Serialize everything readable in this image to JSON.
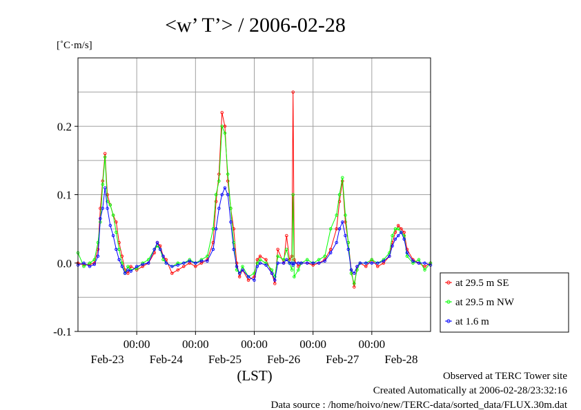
{
  "chart_data": {
    "type": "line",
    "title": "<w’ T’> / 2006-02-28",
    "ylabel": "[˚C·m/s]",
    "xlabel": "(LST)",
    "ylim": [
      -0.1,
      0.3
    ],
    "xlim": [
      0,
      6
    ],
    "y_ticks": [
      {
        "value": -0.1,
        "label": "-0.1"
      },
      {
        "value": 0.0,
        "label": "0.0"
      },
      {
        "value": 0.1,
        "label": "0.1"
      },
      {
        "value": 0.2,
        "label": "0.2"
      }
    ],
    "y_minor": [
      -0.05,
      0.05,
      0.15,
      0.25
    ],
    "x_time_ticks": [
      {
        "value": 1,
        "label": "00:00"
      },
      {
        "value": 2,
        "label": "00:00"
      },
      {
        "value": 3,
        "label": "00:00"
      },
      {
        "value": 4,
        "label": "00:00"
      },
      {
        "value": 5,
        "label": "00:00"
      }
    ],
    "x_date_labels": [
      {
        "value": 0.5,
        "label": "Feb-23"
      },
      {
        "value": 1.5,
        "label": "Feb-24"
      },
      {
        "value": 2.5,
        "label": "Feb-25"
      },
      {
        "value": 3.5,
        "label": "Feb-26"
      },
      {
        "value": 4.5,
        "label": "Feb-27"
      },
      {
        "value": 5.5,
        "label": "Feb-28"
      }
    ],
    "grid": true,
    "legend_position": "right-bottom",
    "series": [
      {
        "name": "at 29.5 m SE",
        "color": "#ff0000",
        "points": [
          [
            0.0,
            0.0
          ],
          [
            0.1,
            -0.003
          ],
          [
            0.2,
            -0.002
          ],
          [
            0.28,
            0.0
          ],
          [
            0.34,
            0.02
          ],
          [
            0.38,
            0.08
          ],
          [
            0.42,
            0.12
          ],
          [
            0.46,
            0.16
          ],
          [
            0.5,
            0.1
          ],
          [
            0.55,
            0.085
          ],
          [
            0.6,
            0.07
          ],
          [
            0.65,
            0.06
          ],
          [
            0.7,
            0.03
          ],
          [
            0.75,
            0.01
          ],
          [
            0.8,
            -0.01
          ],
          [
            0.85,
            -0.015
          ],
          [
            0.9,
            -0.005
          ],
          [
            1.0,
            -0.01
          ],
          [
            1.1,
            -0.005
          ],
          [
            1.2,
            0.0
          ],
          [
            1.3,
            0.015
          ],
          [
            1.35,
            0.03
          ],
          [
            1.4,
            0.025
          ],
          [
            1.45,
            0.01
          ],
          [
            1.5,
            0.005
          ],
          [
            1.6,
            -0.015
          ],
          [
            1.7,
            -0.01
          ],
          [
            1.8,
            -0.005
          ],
          [
            1.9,
            0.0
          ],
          [
            2.0,
            -0.005
          ],
          [
            2.1,
            0.0
          ],
          [
            2.2,
            0.005
          ],
          [
            2.3,
            0.03
          ],
          [
            2.35,
            0.09
          ],
          [
            2.4,
            0.13
          ],
          [
            2.45,
            0.22
          ],
          [
            2.5,
            0.2
          ],
          [
            2.55,
            0.12
          ],
          [
            2.6,
            0.08
          ],
          [
            2.65,
            0.05
          ],
          [
            2.7,
            0.0
          ],
          [
            2.75,
            -0.02
          ],
          [
            2.8,
            -0.01
          ],
          [
            2.9,
            -0.025
          ],
          [
            3.0,
            -0.02
          ],
          [
            3.05,
            0.005
          ],
          [
            3.1,
            0.01
          ],
          [
            3.2,
            0.005
          ],
          [
            3.3,
            -0.015
          ],
          [
            3.35,
            -0.03
          ],
          [
            3.4,
            0.02
          ],
          [
            3.5,
            0.0
          ],
          [
            3.55,
            0.04
          ],
          [
            3.6,
            0.005
          ],
          [
            3.64,
            0.01
          ],
          [
            3.66,
            0.25
          ],
          [
            3.68,
            0.005
          ],
          [
            3.75,
            -0.005
          ],
          [
            3.8,
            0.0
          ],
          [
            3.9,
            0.0
          ],
          [
            4.0,
            -0.003
          ],
          [
            4.1,
            0.0
          ],
          [
            4.2,
            0.005
          ],
          [
            4.3,
            0.02
          ],
          [
            4.4,
            0.05
          ],
          [
            4.45,
            0.09
          ],
          [
            4.5,
            0.12
          ],
          [
            4.55,
            0.06
          ],
          [
            4.6,
            0.03
          ],
          [
            4.65,
            -0.01
          ],
          [
            4.7,
            -0.035
          ],
          [
            4.75,
            -0.005
          ],
          [
            4.8,
            0.0
          ],
          [
            4.9,
            -0.005
          ],
          [
            5.0,
            0.005
          ],
          [
            5.1,
            -0.005
          ],
          [
            5.2,
            0.0
          ],
          [
            5.3,
            0.01
          ],
          [
            5.35,
            0.03
          ],
          [
            5.4,
            0.045
          ],
          [
            5.45,
            0.055
          ],
          [
            5.5,
            0.05
          ],
          [
            5.55,
            0.045
          ],
          [
            5.6,
            0.02
          ],
          [
            5.7,
            0.005
          ],
          [
            5.8,
            0.0
          ],
          [
            5.9,
            -0.005
          ],
          [
            6.0,
            0.0
          ]
        ]
      },
      {
        "name": "at 29.5 m NW",
        "color": "#00ff00",
        "points": [
          [
            0.0,
            0.015
          ],
          [
            0.1,
            -0.005
          ],
          [
            0.2,
            0.0
          ],
          [
            0.28,
            0.005
          ],
          [
            0.34,
            0.03
          ],
          [
            0.38,
            0.06
          ],
          [
            0.42,
            0.115
          ],
          [
            0.46,
            0.155
          ],
          [
            0.5,
            0.09
          ],
          [
            0.55,
            0.085
          ],
          [
            0.6,
            0.07
          ],
          [
            0.65,
            0.045
          ],
          [
            0.7,
            0.02
          ],
          [
            0.75,
            0.0
          ],
          [
            0.8,
            -0.015
          ],
          [
            0.85,
            -0.005
          ],
          [
            0.9,
            -0.01
          ],
          [
            1.0,
            -0.008
          ],
          [
            1.1,
            0.0
          ],
          [
            1.2,
            0.005
          ],
          [
            1.3,
            0.02
          ],
          [
            1.35,
            0.025
          ],
          [
            1.4,
            0.02
          ],
          [
            1.45,
            0.005
          ],
          [
            1.5,
            0.0
          ],
          [
            1.6,
            -0.005
          ],
          [
            1.7,
            0.0
          ],
          [
            1.8,
            0.0
          ],
          [
            1.9,
            0.005
          ],
          [
            2.0,
            0.0
          ],
          [
            2.1,
            0.005
          ],
          [
            2.2,
            0.01
          ],
          [
            2.3,
            0.05
          ],
          [
            2.35,
            0.1
          ],
          [
            2.4,
            0.12
          ],
          [
            2.45,
            0.2
          ],
          [
            2.5,
            0.19
          ],
          [
            2.55,
            0.13
          ],
          [
            2.6,
            0.08
          ],
          [
            2.65,
            0.03
          ],
          [
            2.7,
            -0.01
          ],
          [
            2.75,
            -0.015
          ],
          [
            2.8,
            -0.005
          ],
          [
            2.9,
            -0.02
          ],
          [
            3.0,
            -0.015
          ],
          [
            3.05,
            0.0
          ],
          [
            3.1,
            0.005
          ],
          [
            3.2,
            0.0
          ],
          [
            3.3,
            -0.01
          ],
          [
            3.35,
            -0.02
          ],
          [
            3.4,
            0.01
          ],
          [
            3.5,
            0.005
          ],
          [
            3.55,
            0.02
          ],
          [
            3.6,
            0.0
          ],
          [
            3.64,
            -0.01
          ],
          [
            3.66,
            0.1
          ],
          [
            3.68,
            -0.02
          ],
          [
            3.75,
            -0.01
          ],
          [
            3.8,
            0.0
          ],
          [
            3.9,
            0.005
          ],
          [
            4.0,
            0.0
          ],
          [
            4.1,
            0.005
          ],
          [
            4.2,
            0.01
          ],
          [
            4.3,
            0.05
          ],
          [
            4.4,
            0.07
          ],
          [
            4.45,
            0.1
          ],
          [
            4.5,
            0.125
          ],
          [
            4.55,
            0.07
          ],
          [
            4.6,
            0.03
          ],
          [
            4.65,
            -0.015
          ],
          [
            4.7,
            -0.03
          ],
          [
            4.75,
            -0.01
          ],
          [
            4.8,
            0.0
          ],
          [
            4.9,
            0.0
          ],
          [
            5.0,
            0.005
          ],
          [
            5.1,
            0.0
          ],
          [
            5.2,
            0.005
          ],
          [
            5.3,
            0.015
          ],
          [
            5.35,
            0.04
          ],
          [
            5.4,
            0.05
          ],
          [
            5.45,
            0.05
          ],
          [
            5.5,
            0.045
          ],
          [
            5.55,
            0.04
          ],
          [
            5.6,
            0.01
          ],
          [
            5.7,
            0.0
          ],
          [
            5.8,
            0.005
          ],
          [
            5.9,
            -0.01
          ],
          [
            6.0,
            0.0
          ]
        ]
      },
      {
        "name": "at 1.6 m",
        "color": "#0000ff",
        "points": [
          [
            0.0,
            -0.003
          ],
          [
            0.1,
            0.0
          ],
          [
            0.2,
            -0.005
          ],
          [
            0.28,
            -0.002
          ],
          [
            0.34,
            0.01
          ],
          [
            0.38,
            0.065
          ],
          [
            0.42,
            0.08
          ],
          [
            0.46,
            0.11
          ],
          [
            0.5,
            0.08
          ],
          [
            0.55,
            0.055
          ],
          [
            0.6,
            0.04
          ],
          [
            0.65,
            0.02
          ],
          [
            0.7,
            0.005
          ],
          [
            0.75,
            -0.005
          ],
          [
            0.8,
            -0.015
          ],
          [
            0.85,
            -0.01
          ],
          [
            0.9,
            -0.012
          ],
          [
            1.0,
            -0.005
          ],
          [
            1.1,
            -0.002
          ],
          [
            1.2,
            0.0
          ],
          [
            1.3,
            0.02
          ],
          [
            1.35,
            0.03
          ],
          [
            1.4,
            0.02
          ],
          [
            1.45,
            0.01
          ],
          [
            1.5,
            0.0
          ],
          [
            1.6,
            -0.005
          ],
          [
            1.7,
            -0.003
          ],
          [
            1.8,
            0.0
          ],
          [
            1.9,
            0.003
          ],
          [
            2.0,
            0.0
          ],
          [
            2.1,
            0.003
          ],
          [
            2.2,
            0.003
          ],
          [
            2.3,
            0.02
          ],
          [
            2.35,
            0.05
          ],
          [
            2.4,
            0.08
          ],
          [
            2.45,
            0.1
          ],
          [
            2.5,
            0.11
          ],
          [
            2.55,
            0.1
          ],
          [
            2.6,
            0.06
          ],
          [
            2.65,
            0.02
          ],
          [
            2.7,
            -0.005
          ],
          [
            2.75,
            -0.015
          ],
          [
            2.8,
            -0.01
          ],
          [
            2.9,
            -0.02
          ],
          [
            3.0,
            -0.025
          ],
          [
            3.05,
            -0.005
          ],
          [
            3.1,
            0.0
          ],
          [
            3.2,
            -0.003
          ],
          [
            3.3,
            -0.015
          ],
          [
            3.35,
            -0.025
          ],
          [
            3.4,
            0.0
          ],
          [
            3.5,
            0.0
          ],
          [
            3.55,
            0.005
          ],
          [
            3.6,
            0.0
          ],
          [
            3.64,
            0.0
          ],
          [
            3.66,
            -0.003
          ],
          [
            3.68,
            0.0
          ],
          [
            3.75,
            0.0
          ],
          [
            3.8,
            0.0
          ],
          [
            3.9,
            0.0
          ],
          [
            4.0,
            0.0
          ],
          [
            4.1,
            0.0
          ],
          [
            4.2,
            0.003
          ],
          [
            4.3,
            0.015
          ],
          [
            4.4,
            0.03
          ],
          [
            4.45,
            0.05
          ],
          [
            4.5,
            0.06
          ],
          [
            4.55,
            0.04
          ],
          [
            4.6,
            0.02
          ],
          [
            4.65,
            -0.01
          ],
          [
            4.7,
            -0.015
          ],
          [
            4.75,
            -0.005
          ],
          [
            4.8,
            0.0
          ],
          [
            4.9,
            0.0
          ],
          [
            5.0,
            0.0
          ],
          [
            5.1,
            0.0
          ],
          [
            5.2,
            0.003
          ],
          [
            5.3,
            0.01
          ],
          [
            5.35,
            0.025
          ],
          [
            5.4,
            0.035
          ],
          [
            5.45,
            0.04
          ],
          [
            5.5,
            0.045
          ],
          [
            5.55,
            0.035
          ],
          [
            5.6,
            0.015
          ],
          [
            5.7,
            0.003
          ],
          [
            5.8,
            0.0
          ],
          [
            5.9,
            0.0
          ],
          [
            6.0,
            -0.003
          ]
        ]
      }
    ]
  },
  "footer": {
    "line1": "Observed at TERC Tower site",
    "line2": "Created Automatically at 2006-02-28/23:32:16",
    "line3": "Data source : /home/hoivo/new/TERC-data/sorted_data/FLUX.30m.dat"
  }
}
